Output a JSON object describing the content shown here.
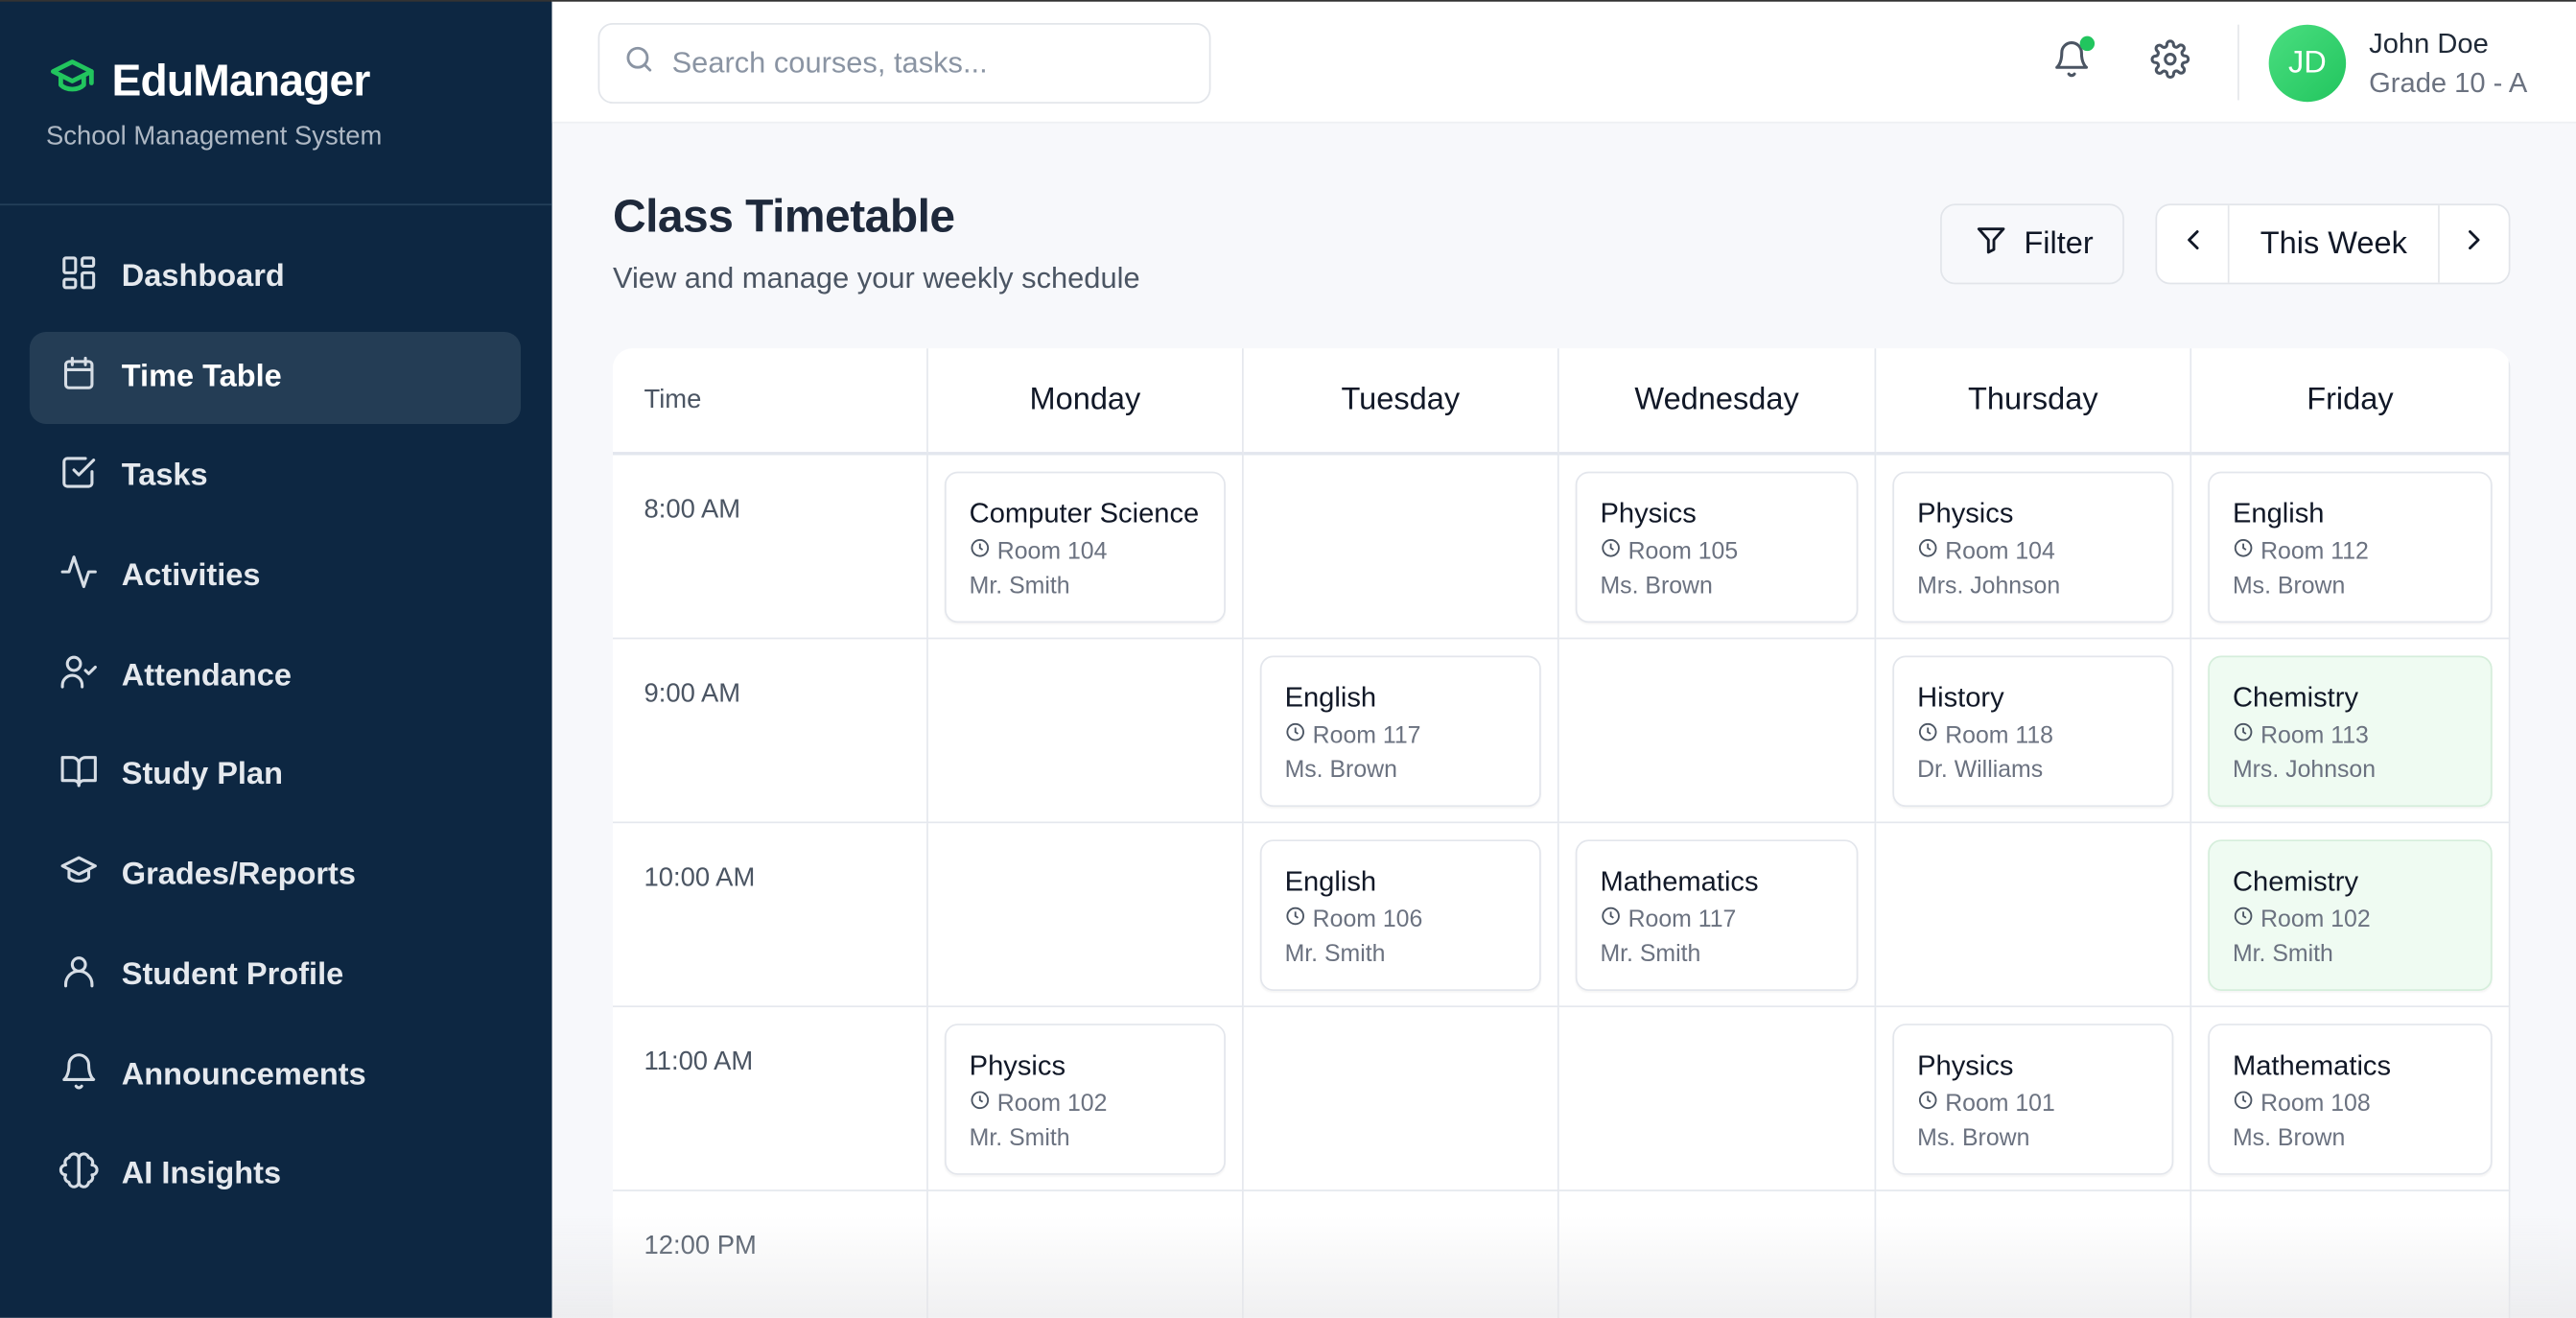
{
  "brand": {
    "name": "EduManager",
    "subtitle": "School Management System",
    "accent": "#22c55e"
  },
  "nav": [
    {
      "label": "Dashboard",
      "icon": "dashboard-icon"
    },
    {
      "label": "Time Table",
      "icon": "calendar-icon",
      "active": true
    },
    {
      "label": "Tasks",
      "icon": "checkbox-icon"
    },
    {
      "label": "Activities",
      "icon": "activity-icon"
    },
    {
      "label": "Attendance",
      "icon": "user-check-icon"
    },
    {
      "label": "Study Plan",
      "icon": "book-icon"
    },
    {
      "label": "Grades/Reports",
      "icon": "graduation-cap-icon"
    },
    {
      "label": "Student Profile",
      "icon": "user-icon"
    },
    {
      "label": "Announcements",
      "icon": "bell-icon"
    },
    {
      "label": "AI Insights",
      "icon": "brain-icon"
    }
  ],
  "header": {
    "search_placeholder": "Search courses, tasks...",
    "user": {
      "initials": "JD",
      "name": "John Doe",
      "grade": "Grade 10 - A"
    }
  },
  "page": {
    "title": "Class Timetable",
    "subtitle": "View and manage your weekly schedule",
    "filter_label": "Filter",
    "week_label": "This Week"
  },
  "timetable": {
    "time_header": "Time",
    "days": [
      "Monday",
      "Tuesday",
      "Wednesday",
      "Thursday",
      "Friday"
    ],
    "rows": [
      {
        "time": "8:00 AM",
        "slots": [
          {
            "name": "Computer Science",
            "room": "Room 104",
            "teacher": "Mr. Smith"
          },
          null,
          {
            "name": "Physics",
            "room": "Room 105",
            "teacher": "Ms. Brown"
          },
          {
            "name": "Physics",
            "room": "Room 104",
            "teacher": "Mrs. Johnson"
          },
          {
            "name": "English",
            "room": "Room 112",
            "teacher": "Ms. Brown"
          }
        ]
      },
      {
        "time": "9:00 AM",
        "slots": [
          null,
          {
            "name": "English",
            "room": "Room 117",
            "teacher": "Ms. Brown"
          },
          null,
          {
            "name": "History",
            "room": "Room 118",
            "teacher": "Dr. Williams"
          },
          {
            "name": "Chemistry",
            "room": "Room 113",
            "teacher": "Mrs. Johnson",
            "highlight": true
          }
        ]
      },
      {
        "time": "10:00 AM",
        "slots": [
          null,
          {
            "name": "English",
            "room": "Room 106",
            "teacher": "Mr. Smith"
          },
          {
            "name": "Mathematics",
            "room": "Room 117",
            "teacher": "Mr. Smith"
          },
          null,
          {
            "name": "Chemistry",
            "room": "Room 102",
            "teacher": "Mr. Smith",
            "highlight": true
          }
        ]
      },
      {
        "time": "11:00 AM",
        "slots": [
          {
            "name": "Physics",
            "room": "Room 102",
            "teacher": "Mr. Smith"
          },
          null,
          null,
          {
            "name": "Physics",
            "room": "Room 101",
            "teacher": "Ms. Brown"
          },
          {
            "name": "Mathematics",
            "room": "Room 108",
            "teacher": "Ms. Brown"
          }
        ]
      },
      {
        "time": "12:00 PM",
        "slots": [
          null,
          null,
          null,
          null,
          null
        ]
      }
    ]
  }
}
